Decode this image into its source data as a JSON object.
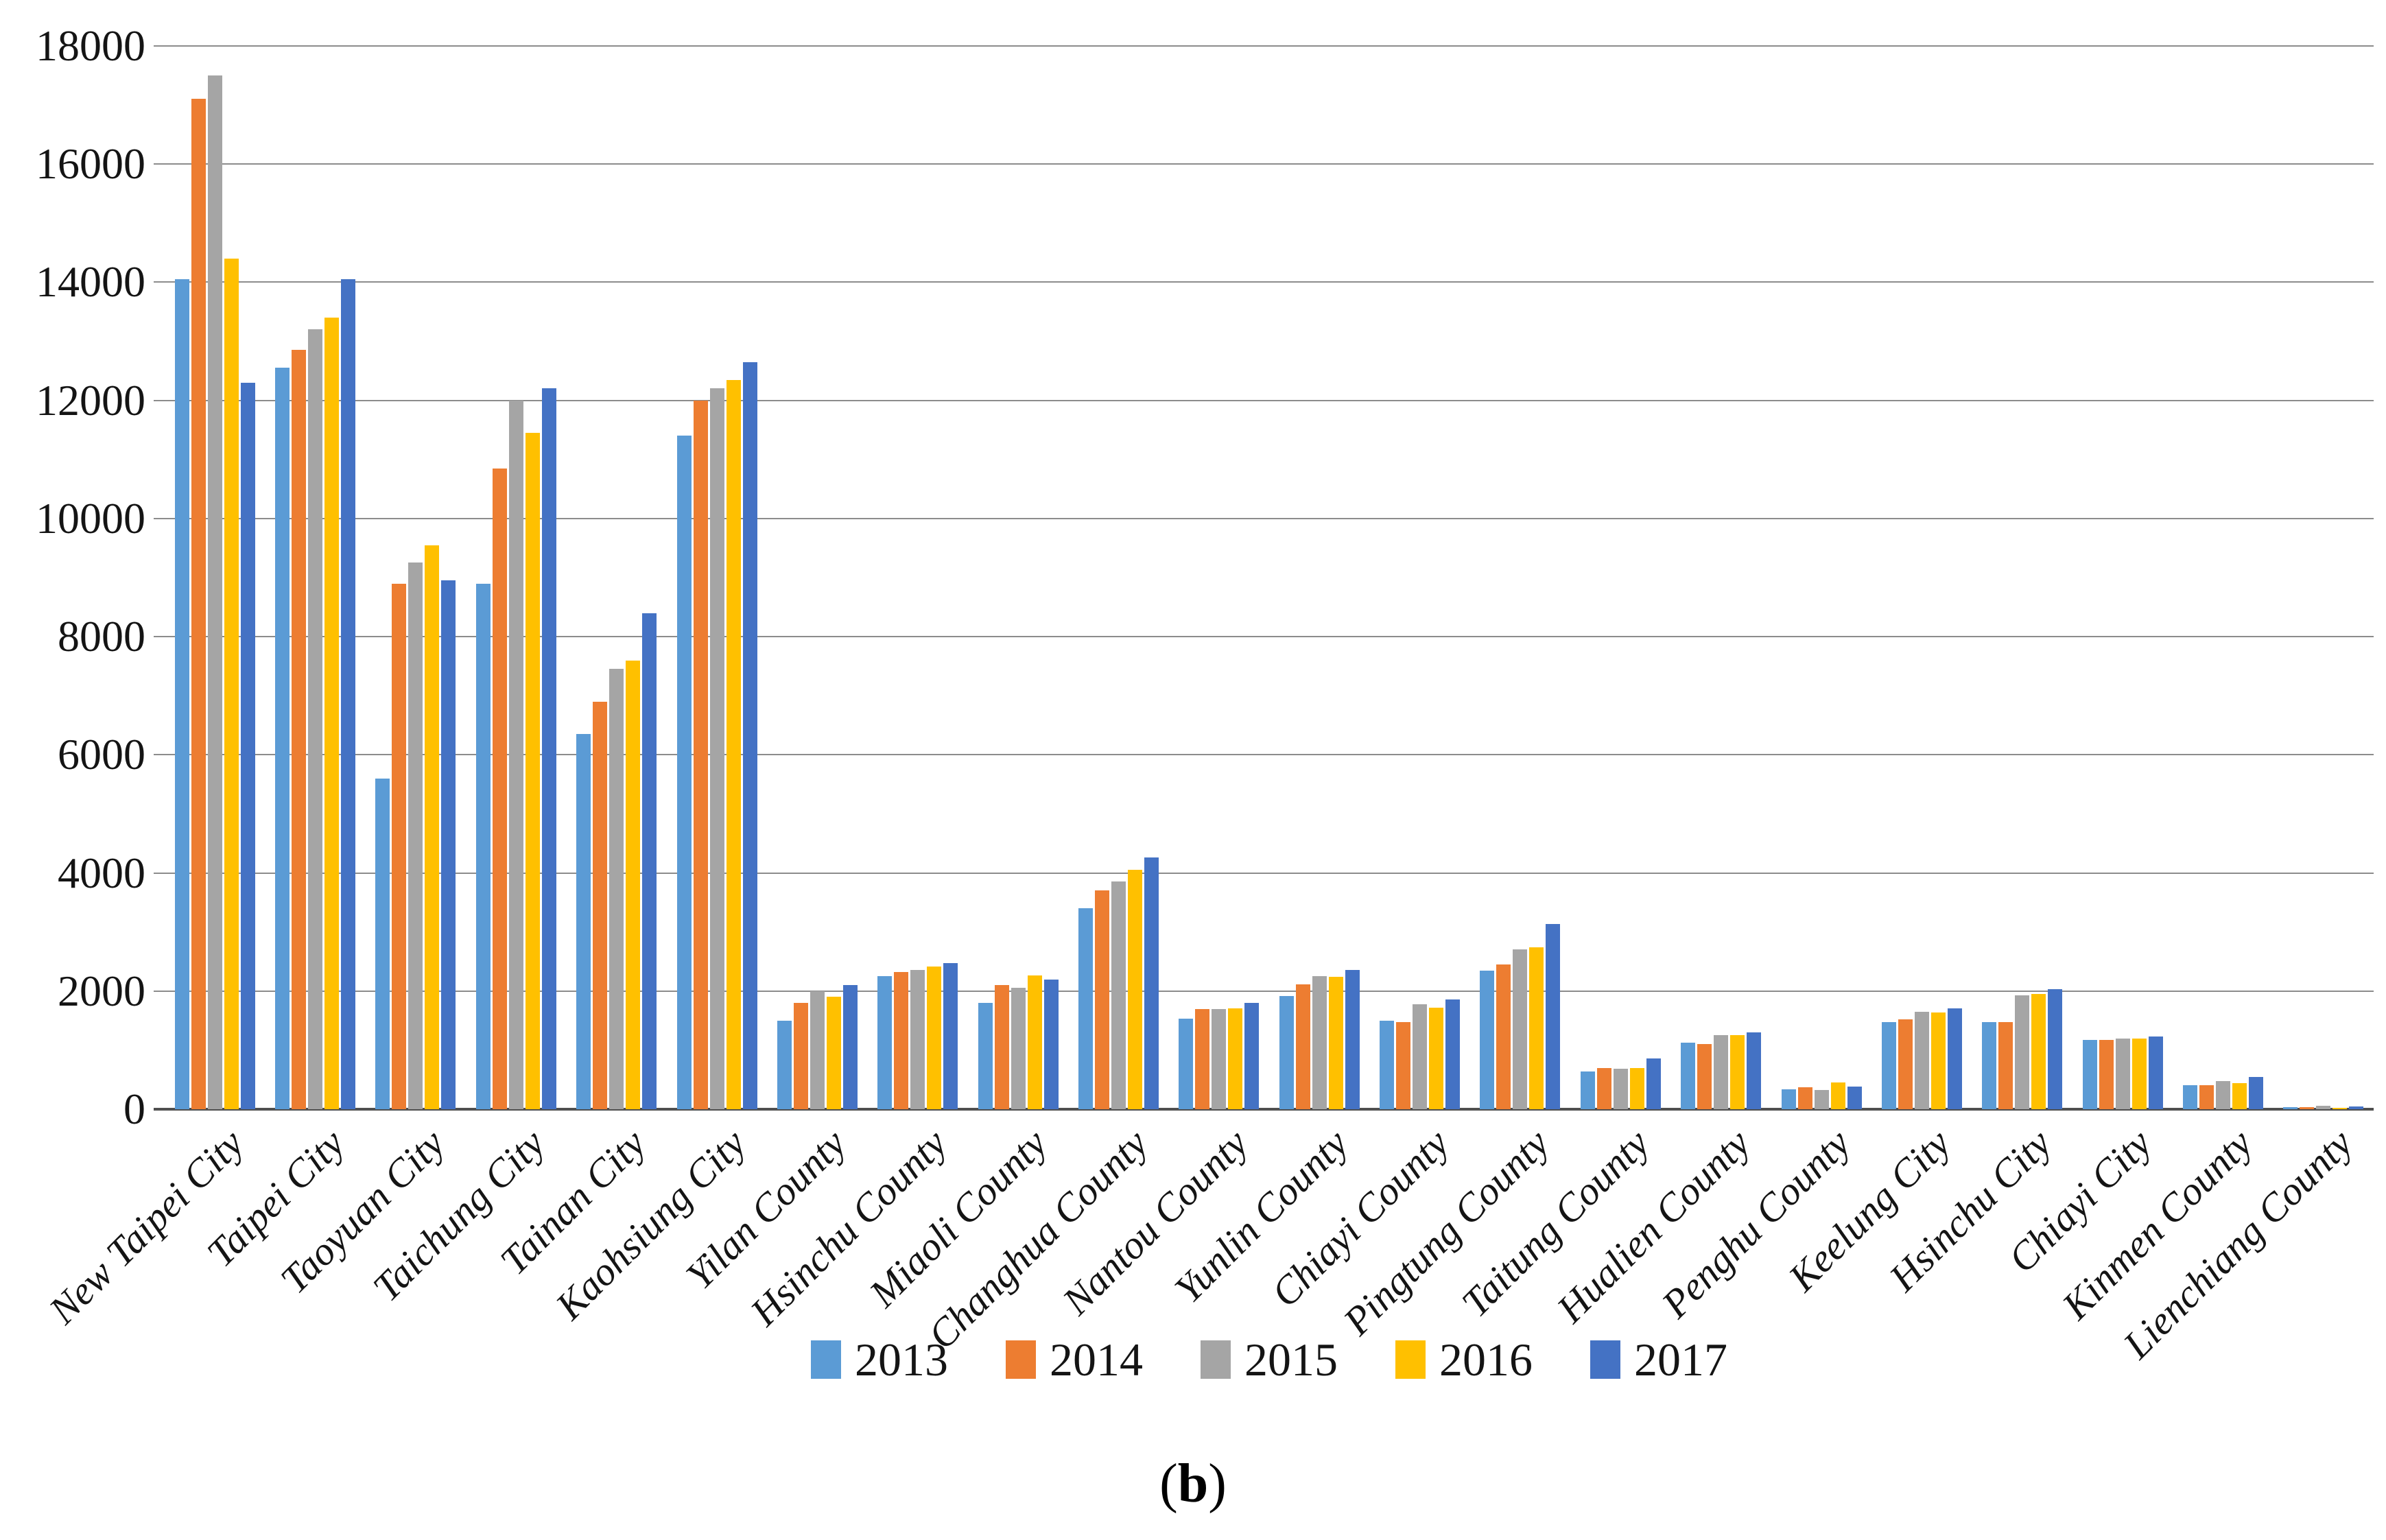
{
  "chart_data": {
    "type": "bar",
    "title": "",
    "xlabel": "",
    "ylabel": "",
    "ylim": [
      0,
      18000
    ],
    "ytick_step": 2000,
    "grid": true,
    "legend_position": "bottom",
    "categories": [
      "New Taipei City",
      "Taipei City",
      "Taoyuan City",
      "Taichung City",
      "Tainan City",
      "Kaohsiung City",
      "Yilan County",
      "Hsinchu County",
      "Miaoli County",
      "Changhua County",
      "Nantou County",
      "Yunlin County",
      "Chiayi County",
      "Pingtung County",
      "Taitung County",
      "Hualien County",
      "Penghu County",
      "Keelung City",
      "Hsinchu City",
      "Chiayi City",
      "Kinmen County",
      "Lienchiang County"
    ],
    "series": [
      {
        "name": "2013",
        "color": "#5B9BD5",
        "values": [
          14050,
          12550,
          5600,
          8900,
          6350,
          11400,
          1500,
          2250,
          1800,
          3400,
          1530,
          1920,
          1500,
          2340,
          640,
          1130,
          340,
          1470,
          1470,
          1170,
          410,
          30
        ]
      },
      {
        "name": "2014",
        "color": "#ED7D31",
        "values": [
          17100,
          12850,
          8900,
          10850,
          6900,
          12000,
          1800,
          2320,
          2100,
          3700,
          1690,
          2110,
          1470,
          2450,
          700,
          1100,
          370,
          1520,
          1470,
          1170,
          410,
          30
        ]
      },
      {
        "name": "2015",
        "color": "#A5A5A5",
        "values": [
          17500,
          13200,
          9250,
          12000,
          7450,
          12200,
          2000,
          2360,
          2050,
          3860,
          1700,
          2250,
          1780,
          2700,
          680,
          1250,
          330,
          1650,
          1930,
          1200,
          480,
          55
        ]
      },
      {
        "name": "2016",
        "color": "#FFC000",
        "values": [
          14400,
          13400,
          9550,
          11450,
          7600,
          12350,
          1900,
          2410,
          2270,
          4050,
          1710,
          2240,
          1720,
          2740,
          700,
          1250,
          450,
          1640,
          1950,
          1200,
          440,
          25
        ]
      },
      {
        "name": "2017",
        "color": "#4472C4",
        "values": [
          12300,
          14050,
          8950,
          12200,
          8400,
          12650,
          2100,
          2470,
          2200,
          4260,
          1800,
          2360,
          1860,
          3130,
          860,
          1300,
          380,
          1710,
          2030,
          1230,
          540,
          50
        ]
      }
    ]
  },
  "figure_label": {
    "open": "(",
    "letter": "b",
    "close": ")"
  }
}
